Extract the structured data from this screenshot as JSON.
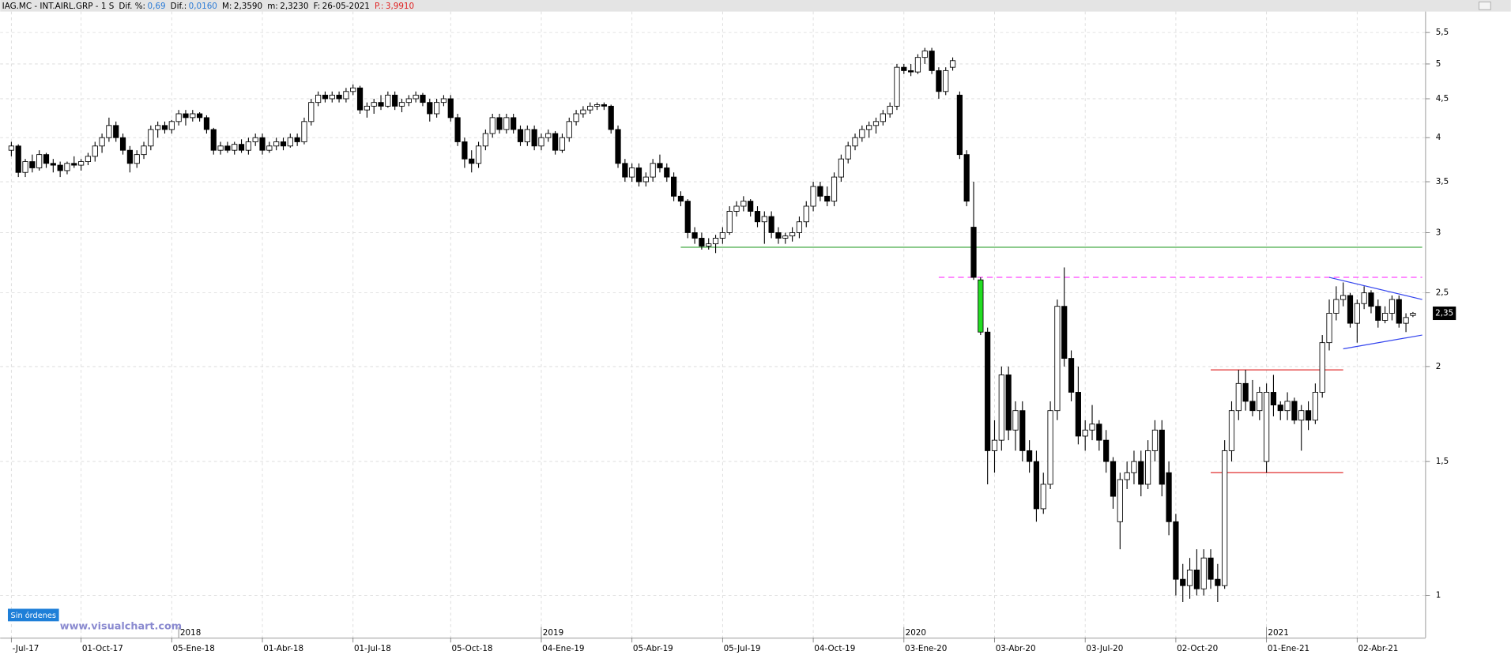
{
  "header": {
    "symbol": "IAG.MC - INT.AIRL.GRP -  1 S",
    "fields": [
      {
        "label": "Dif. %:",
        "value": "0,69",
        "label_color": "#000000",
        "value_color": "#2a7ad6"
      },
      {
        "label": "Dif.:",
        "value": "0,0160",
        "label_color": "#000000",
        "value_color": "#2a7ad6"
      },
      {
        "label": "M:",
        "value": "2,3590",
        "label_color": "#000000",
        "value_color": "#000000"
      },
      {
        "label": "m:",
        "value": "2,3230",
        "label_color": "#000000",
        "value_color": "#000000"
      },
      {
        "label": "F:",
        "value": "26-05-2021",
        "label_color": "#000000",
        "value_color": "#000000"
      },
      {
        "label": "P.:",
        "value": "3,9910",
        "label_color": "#e02020",
        "value_color": "#e02020"
      }
    ]
  },
  "status": "Sin órdenes",
  "watermark": "www.visualchart.com",
  "chart_data": {
    "type": "candlestick",
    "log_scale": true,
    "grid": true,
    "ylim": [
      0.885,
      5.86
    ],
    "yticks": [
      1,
      {
        "value": 1.5,
        "label": "1,5"
      },
      2,
      {
        "value": 2.5,
        "label": "2,5"
      },
      3,
      {
        "value": 3.5,
        "label": "3,5"
      },
      4,
      {
        "value": 4.5,
        "label": "4,5"
      },
      5,
      {
        "value": 5.5,
        "label": "5,5"
      }
    ],
    "up_color": "#ffffff",
    "down_color": "#000000",
    "outline_color": "#000000",
    "highlighted": {
      "index": 139,
      "color": "#22dd22"
    },
    "last_price": {
      "value": 2.35,
      "label": "2,35"
    },
    "categories": [
      "-Jul-17",
      null,
      null,
      null,
      null,
      null,
      null,
      null,
      null,
      null,
      "01-Oct-17",
      null,
      null,
      null,
      null,
      null,
      null,
      null,
      null,
      null,
      null,
      null,
      null,
      "05-Ene-18",
      null,
      null,
      null,
      null,
      null,
      null,
      null,
      null,
      null,
      null,
      null,
      null,
      "01-Abr-18",
      null,
      null,
      null,
      null,
      null,
      null,
      null,
      null,
      null,
      null,
      null,
      null,
      "01-Jul-18",
      null,
      null,
      null,
      null,
      null,
      null,
      null,
      null,
      null,
      null,
      null,
      null,
      null,
      "05-Oct-18",
      null,
      null,
      null,
      null,
      null,
      null,
      null,
      null,
      null,
      null,
      null,
      null,
      "04-Ene-19",
      null,
      null,
      null,
      null,
      null,
      null,
      null,
      null,
      null,
      null,
      null,
      null,
      "05-Abr-19",
      null,
      null,
      null,
      null,
      null,
      null,
      null,
      null,
      null,
      null,
      null,
      null,
      "05-Jul-19",
      null,
      null,
      null,
      null,
      null,
      null,
      null,
      null,
      null,
      null,
      null,
      null,
      "04-Oct-19",
      null,
      null,
      null,
      null,
      null,
      null,
      null,
      null,
      null,
      null,
      null,
      null,
      "03-Ene-20",
      null,
      null,
      null,
      null,
      null,
      null,
      null,
      null,
      null,
      null,
      null,
      null,
      "03-Abr-20",
      null,
      null,
      null,
      null,
      null,
      null,
      null,
      null,
      null,
      null,
      null,
      null,
      "03-Jul-20",
      null,
      null,
      null,
      null,
      null,
      null,
      null,
      null,
      null,
      null,
      null,
      null,
      "02-Oct-20",
      null,
      null,
      null,
      null,
      null,
      null,
      null,
      null,
      null,
      null,
      null,
      null,
      "01-Ene-21",
      null,
      null,
      null,
      null,
      null,
      null,
      null,
      null,
      null,
      null,
      null,
      null,
      "02-Abr-21",
      null,
      null,
      null,
      null,
      null,
      null,
      null,
      null
    ],
    "years": [
      {
        "label": "2018",
        "category": 24
      },
      {
        "label": "2019",
        "category": 76
      },
      {
        "label": "2020",
        "category": 128
      },
      {
        "label": "2021",
        "category": 180
      }
    ],
    "ohlc": [
      [
        3.85,
        3.95,
        3.78,
        3.9
      ],
      [
        3.9,
        3.92,
        3.55,
        3.6
      ],
      [
        3.6,
        3.75,
        3.55,
        3.72
      ],
      [
        3.72,
        3.8,
        3.6,
        3.65
      ],
      [
        3.65,
        3.85,
        3.62,
        3.8
      ],
      [
        3.8,
        3.82,
        3.65,
        3.7
      ],
      [
        3.7,
        3.75,
        3.6,
        3.68
      ],
      [
        3.68,
        3.72,
        3.55,
        3.62
      ],
      [
        3.62,
        3.72,
        3.58,
        3.7
      ],
      [
        3.7,
        3.78,
        3.65,
        3.68
      ],
      [
        3.68,
        3.75,
        3.62,
        3.72
      ],
      [
        3.72,
        3.82,
        3.68,
        3.78
      ],
      [
        3.78,
        3.95,
        3.72,
        3.9
      ],
      [
        3.9,
        4.05,
        3.82,
        4.0
      ],
      [
        4.0,
        4.25,
        3.95,
        4.15
      ],
      [
        4.15,
        4.2,
        3.95,
        4.0
      ],
      [
        4.0,
        4.05,
        3.8,
        3.85
      ],
      [
        3.85,
        3.9,
        3.6,
        3.7
      ],
      [
        3.7,
        3.85,
        3.65,
        3.8
      ],
      [
        3.8,
        3.95,
        3.75,
        3.9
      ],
      [
        3.9,
        4.15,
        3.85,
        4.1
      ],
      [
        4.1,
        4.2,
        4.0,
        4.15
      ],
      [
        4.15,
        4.2,
        4.05,
        4.1
      ],
      [
        4.1,
        4.22,
        4.05,
        4.2
      ],
      [
        4.2,
        4.35,
        4.15,
        4.3
      ],
      [
        4.3,
        4.35,
        4.15,
        4.25
      ],
      [
        4.25,
        4.35,
        4.2,
        4.3
      ],
      [
        4.3,
        4.32,
        4.2,
        4.25
      ],
      [
        4.25,
        4.28,
        4.05,
        4.1
      ],
      [
        4.1,
        4.12,
        3.8,
        3.85
      ],
      [
        3.85,
        3.95,
        3.8,
        3.9
      ],
      [
        3.9,
        3.95,
        3.82,
        3.85
      ],
      [
        3.85,
        3.95,
        3.8,
        3.92
      ],
      [
        3.92,
        3.98,
        3.82,
        3.85
      ],
      [
        3.85,
        4.0,
        3.8,
        3.95
      ],
      [
        3.95,
        4.05,
        3.9,
        4.0
      ],
      [
        4.0,
        4.05,
        3.8,
        3.85
      ],
      [
        3.85,
        3.95,
        3.82,
        3.9
      ],
      [
        3.9,
        4.0,
        3.85,
        3.95
      ],
      [
        3.95,
        4.0,
        3.85,
        3.9
      ],
      [
        3.9,
        4.05,
        3.88,
        4.0
      ],
      [
        4.0,
        4.05,
        3.9,
        3.95
      ],
      [
        3.95,
        4.25,
        3.92,
        4.2
      ],
      [
        4.2,
        4.5,
        4.15,
        4.45
      ],
      [
        4.45,
        4.6,
        4.4,
        4.55
      ],
      [
        4.55,
        4.6,
        4.45,
        4.5
      ],
      [
        4.5,
        4.6,
        4.45,
        4.55
      ],
      [
        4.55,
        4.6,
        4.45,
        4.5
      ],
      [
        4.5,
        4.65,
        4.45,
        4.6
      ],
      [
        4.6,
        4.7,
        4.55,
        4.65
      ],
      [
        4.65,
        4.68,
        4.3,
        4.35
      ],
      [
        4.35,
        4.45,
        4.25,
        4.4
      ],
      [
        4.4,
        4.5,
        4.3,
        4.45
      ],
      [
        4.45,
        4.55,
        4.35,
        4.4
      ],
      [
        4.4,
        4.6,
        4.38,
        4.55
      ],
      [
        4.55,
        4.6,
        4.35,
        4.4
      ],
      [
        4.4,
        4.5,
        4.32,
        4.45
      ],
      [
        4.45,
        4.55,
        4.4,
        4.5
      ],
      [
        4.5,
        4.6,
        4.45,
        4.55
      ],
      [
        4.55,
        4.58,
        4.4,
        4.45
      ],
      [
        4.45,
        4.5,
        4.2,
        4.3
      ],
      [
        4.3,
        4.5,
        4.25,
        4.45
      ],
      [
        4.45,
        4.55,
        4.4,
        4.5
      ],
      [
        4.5,
        4.55,
        4.2,
        4.25
      ],
      [
        4.25,
        4.3,
        3.9,
        3.95
      ],
      [
        3.95,
        4.0,
        3.65,
        3.75
      ],
      [
        3.75,
        3.85,
        3.6,
        3.7
      ],
      [
        3.7,
        3.95,
        3.65,
        3.9
      ],
      [
        3.9,
        4.1,
        3.85,
        4.05
      ],
      [
        4.05,
        4.3,
        4.0,
        4.25
      ],
      [
        4.25,
        4.3,
        4.05,
        4.1
      ],
      [
        4.1,
        4.3,
        4.05,
        4.25
      ],
      [
        4.25,
        4.3,
        4.05,
        4.1
      ],
      [
        4.1,
        4.15,
        3.9,
        3.95
      ],
      [
        3.95,
        4.15,
        3.9,
        4.1
      ],
      [
        4.1,
        4.15,
        3.85,
        3.9
      ],
      [
        3.9,
        4.05,
        3.85,
        4.0
      ],
      [
        4.0,
        4.1,
        3.95,
        4.05
      ],
      [
        4.05,
        4.08,
        3.8,
        3.85
      ],
      [
        3.85,
        4.05,
        3.82,
        4.0
      ],
      [
        4.0,
        4.25,
        3.95,
        4.2
      ],
      [
        4.2,
        4.35,
        4.15,
        4.3
      ],
      [
        4.3,
        4.4,
        4.25,
        4.35
      ],
      [
        4.35,
        4.45,
        4.3,
        4.4
      ],
      [
        4.4,
        4.45,
        4.35,
        4.42
      ],
      [
        4.42,
        4.45,
        4.35,
        4.4
      ],
      [
        4.4,
        4.42,
        4.05,
        4.1
      ],
      [
        4.1,
        4.15,
        3.65,
        3.7
      ],
      [
        3.7,
        3.75,
        3.5,
        3.55
      ],
      [
        3.55,
        3.7,
        3.5,
        3.65
      ],
      [
        3.65,
        3.7,
        3.45,
        3.5
      ],
      [
        3.5,
        3.6,
        3.45,
        3.55
      ],
      [
        3.55,
        3.75,
        3.5,
        3.7
      ],
      [
        3.7,
        3.8,
        3.6,
        3.65
      ],
      [
        3.65,
        3.7,
        3.5,
        3.55
      ],
      [
        3.55,
        3.6,
        3.3,
        3.35
      ],
      [
        3.35,
        3.4,
        3.25,
        3.3
      ],
      [
        3.3,
        3.32,
        2.95,
        3.0
      ],
      [
        3.0,
        3.05,
        2.9,
        2.95
      ],
      [
        2.95,
        3.0,
        2.85,
        2.88
      ],
      [
        2.88,
        2.95,
        2.85,
        2.9
      ],
      [
        2.9,
        2.98,
        2.82,
        2.95
      ],
      [
        2.95,
        3.05,
        2.9,
        3.0
      ],
      [
        3.0,
        3.25,
        2.98,
        3.2
      ],
      [
        3.2,
        3.3,
        3.15,
        3.25
      ],
      [
        3.25,
        3.35,
        3.2,
        3.3
      ],
      [
        3.3,
        3.32,
        3.15,
        3.2
      ],
      [
        3.2,
        3.25,
        3.05,
        3.1
      ],
      [
        3.1,
        3.2,
        2.9,
        3.15
      ],
      [
        3.15,
        3.2,
        2.95,
        3.0
      ],
      [
        3.0,
        3.05,
        2.9,
        2.95
      ],
      [
        2.95,
        3.0,
        2.9,
        2.97
      ],
      [
        2.97,
        3.05,
        2.92,
        3.0
      ],
      [
        3.0,
        3.15,
        2.95,
        3.1
      ],
      [
        3.1,
        3.3,
        3.05,
        3.25
      ],
      [
        3.25,
        3.5,
        3.2,
        3.45
      ],
      [
        3.45,
        3.5,
        3.3,
        3.35
      ],
      [
        3.35,
        3.45,
        3.25,
        3.3
      ],
      [
        3.3,
        3.6,
        3.25,
        3.55
      ],
      [
        3.55,
        3.8,
        3.5,
        3.75
      ],
      [
        3.75,
        3.95,
        3.7,
        3.9
      ],
      [
        3.9,
        4.05,
        3.85,
        4.0
      ],
      [
        4.0,
        4.15,
        3.95,
        4.1
      ],
      [
        4.1,
        4.2,
        4.0,
        4.15
      ],
      [
        4.15,
        4.25,
        4.05,
        4.2
      ],
      [
        4.2,
        4.35,
        4.15,
        4.3
      ],
      [
        4.3,
        4.45,
        4.25,
        4.4
      ],
      [
        4.4,
        5.0,
        4.35,
        4.95
      ],
      [
        4.95,
        5.0,
        4.85,
        4.9
      ],
      [
        4.9,
        5.0,
        4.82,
        4.88
      ],
      [
        4.88,
        5.15,
        4.85,
        5.1
      ],
      [
        5.1,
        5.25,
        5.0,
        5.2
      ],
      [
        5.2,
        5.25,
        4.85,
        4.9
      ],
      [
        4.9,
        4.95,
        4.5,
        4.6
      ],
      [
        4.6,
        4.95,
        4.55,
        4.9
      ],
      [
        4.95,
        5.1,
        4.9,
        5.05
      ],
      [
        4.55,
        4.6,
        3.75,
        3.8
      ],
      [
        3.8,
        3.85,
        3.25,
        3.3
      ],
      [
        3.05,
        3.5,
        2.6,
        2.62
      ],
      [
        2.6,
        2.62,
        2.2,
        2.22
      ],
      [
        2.22,
        2.25,
        1.4,
        1.55
      ],
      [
        1.55,
        1.7,
        1.45,
        1.6
      ],
      [
        1.6,
        2.0,
        1.55,
        1.95
      ],
      [
        1.95,
        2.0,
        1.6,
        1.65
      ],
      [
        1.65,
        1.8,
        1.55,
        1.75
      ],
      [
        1.75,
        1.8,
        1.5,
        1.55
      ],
      [
        1.55,
        1.6,
        1.45,
        1.5
      ],
      [
        1.5,
        1.55,
        1.25,
        1.3
      ],
      [
        1.3,
        1.45,
        1.28,
        1.4
      ],
      [
        1.4,
        1.8,
        1.38,
        1.75
      ],
      [
        1.75,
        2.45,
        1.7,
        2.4
      ],
      [
        2.4,
        2.7,
        2.0,
        2.05
      ],
      [
        2.05,
        2.1,
        1.8,
        1.85
      ],
      [
        1.85,
        2.0,
        1.58,
        1.62
      ],
      [
        1.62,
        1.7,
        1.55,
        1.65
      ],
      [
        1.65,
        1.78,
        1.6,
        1.68
      ],
      [
        1.68,
        1.7,
        1.55,
        1.6
      ],
      [
        1.6,
        1.65,
        1.45,
        1.5
      ],
      [
        1.5,
        1.52,
        1.3,
        1.35
      ],
      [
        1.25,
        1.45,
        1.15,
        1.42
      ],
      [
        1.42,
        1.5,
        1.38,
        1.45
      ],
      [
        1.45,
        1.55,
        1.4,
        1.5
      ],
      [
        1.5,
        1.55,
        1.35,
        1.4
      ],
      [
        1.4,
        1.6,
        1.38,
        1.55
      ],
      [
        1.55,
        1.7,
        1.5,
        1.65
      ],
      [
        1.65,
        1.7,
        1.35,
        1.4
      ],
      [
        1.45,
        1.5,
        1.2,
        1.25
      ],
      [
        1.25,
        1.28,
        1.0,
        1.05
      ],
      [
        1.05,
        1.1,
        0.98,
        1.03
      ],
      [
        1.03,
        1.12,
        0.99,
        1.08
      ],
      [
        1.08,
        1.15,
        1.0,
        1.02
      ],
      [
        1.02,
        1.15,
        1.0,
        1.12
      ],
      [
        1.12,
        1.15,
        1.02,
        1.05
      ],
      [
        1.05,
        1.1,
        0.98,
        1.03
      ],
      [
        1.03,
        1.6,
        1.02,
        1.55
      ],
      [
        1.55,
        1.8,
        1.5,
        1.75
      ],
      [
        1.75,
        1.98,
        1.7,
        1.9
      ],
      [
        1.9,
        1.98,
        1.75,
        1.8
      ],
      [
        1.8,
        1.92,
        1.72,
        1.75
      ],
      [
        1.75,
        1.88,
        1.7,
        1.85
      ],
      [
        1.5,
        1.9,
        1.45,
        1.85
      ],
      [
        1.85,
        1.95,
        1.72,
        1.78
      ],
      [
        1.78,
        1.8,
        1.7,
        1.75
      ],
      [
        1.75,
        1.85,
        1.7,
        1.8
      ],
      [
        1.8,
        1.82,
        1.68,
        1.7
      ],
      [
        1.7,
        1.78,
        1.55,
        1.75
      ],
      [
        1.75,
        1.8,
        1.65,
        1.7
      ],
      [
        1.7,
        1.9,
        1.68,
        1.85
      ],
      [
        1.85,
        2.2,
        1.82,
        2.15
      ],
      [
        2.15,
        2.45,
        2.1,
        2.35
      ],
      [
        2.35,
        2.55,
        2.3,
        2.45
      ],
      [
        2.45,
        2.58,
        2.4,
        2.48
      ],
      [
        2.48,
        2.5,
        2.25,
        2.28
      ],
      [
        2.28,
        2.45,
        2.15,
        2.42
      ],
      [
        2.42,
        2.55,
        2.38,
        2.5
      ],
      [
        2.5,
        2.52,
        2.35,
        2.4
      ],
      [
        2.4,
        2.45,
        2.25,
        2.3
      ],
      [
        2.3,
        2.4,
        2.28,
        2.35
      ],
      [
        2.35,
        2.48,
        2.3,
        2.45
      ],
      [
        2.45,
        2.48,
        2.25,
        2.28
      ],
      [
        2.28,
        2.35,
        2.22,
        2.32
      ],
      [
        2.335,
        2.359,
        2.323,
        2.35
      ]
    ],
    "drawings": [
      {
        "color": "#2a9d2a",
        "dashed": false,
        "from": 96,
        "to": 201,
        "values": [
          2.87,
          2.87
        ]
      },
      {
        "color": "#ff44ff",
        "dashed": true,
        "from": 133,
        "to": 201,
        "values": [
          2.62,
          2.62
        ]
      },
      {
        "color": "#e03030",
        "dashed": false,
        "from": 172,
        "to": 191,
        "values": [
          1.98,
          1.98
        ]
      },
      {
        "color": "#e03030",
        "dashed": false,
        "from": 172,
        "to": 191,
        "values": [
          1.45,
          1.45
        ]
      },
      {
        "color": "#3344ee",
        "dashed": false,
        "from": 189,
        "to": 201,
        "values": [
          2.62,
          2.45
        ]
      },
      {
        "color": "#3344ee",
        "dashed": false,
        "from": 191,
        "to": 201,
        "values": [
          2.11,
          2.2
        ]
      }
    ]
  }
}
